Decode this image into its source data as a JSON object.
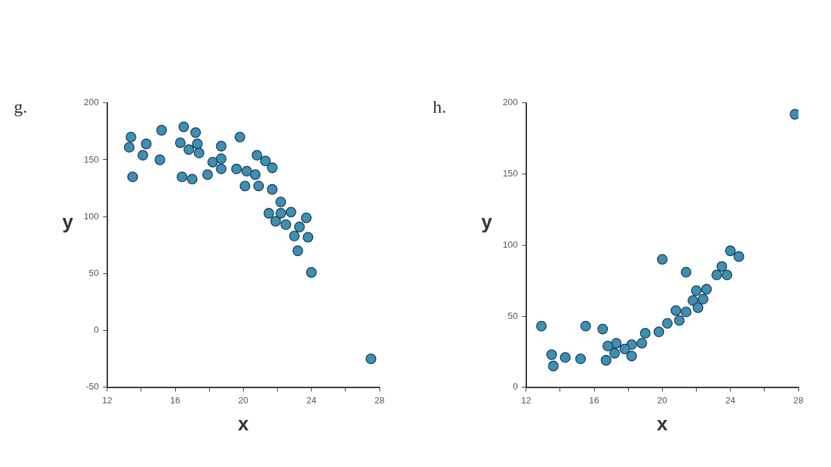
{
  "chart_data": [
    {
      "type": "scatter",
      "title": "g.",
      "xlabel": "x",
      "ylabel": "y",
      "marker": "circle",
      "grid": false,
      "xlim": [
        12,
        28
      ],
      "xticks": [
        12,
        {
          "value": 14,
          "label": null
        },
        16,
        {
          "value": 18,
          "label": null
        },
        20,
        {
          "value": 22,
          "label": null
        },
        24,
        {
          "value": 26,
          "label": null
        },
        28
      ],
      "ylim": [
        -50,
        200
      ],
      "yticks": [
        -50,
        0,
        50,
        100,
        150,
        200
      ],
      "series": [
        {
          "color": "#3d8fb3",
          "x": [
            13.3,
            13.4,
            13.5,
            14.1,
            14.3,
            15.1,
            15.2,
            16.5,
            16.3,
            16.4,
            17.0,
            17.2,
            16.8,
            17.3,
            17.4,
            17.9,
            18.2,
            18.7,
            18.7,
            18.7,
            19.8,
            19.6,
            20.2,
            20.1,
            20.7,
            20.9,
            20.8,
            21.3,
            21.7,
            21.7,
            22.2,
            21.5,
            22.2,
            21.9,
            22.5,
            22.8,
            23.7,
            23.3,
            23.0,
            23.8,
            23.2,
            24.0,
            27.5
          ],
          "values": [
            161,
            170,
            135,
            154,
            164,
            150,
            176,
            179,
            165,
            135,
            133,
            174,
            159,
            164,
            156,
            137,
            148,
            162,
            151,
            142,
            170,
            142,
            140,
            127,
            137,
            127,
            154,
            149,
            143,
            124,
            113,
            103,
            103,
            96,
            93,
            104,
            99,
            91,
            83,
            82,
            70,
            51,
            -25
          ]
        }
      ]
    },
    {
      "type": "scatter",
      "title": "h.",
      "xlabel": "x",
      "ylabel": "y",
      "marker": "circle",
      "grid": false,
      "xlim": [
        12,
        28
      ],
      "xticks": [
        12,
        {
          "value": 14,
          "label": null
        },
        16,
        {
          "value": 18,
          "label": null
        },
        20,
        {
          "value": 22,
          "label": null
        },
        24,
        {
          "value": 26,
          "label": null
        },
        28
      ],
      "ylim": [
        0,
        200
      ],
      "yticks": [
        0,
        50,
        100,
        150,
        200
      ],
      "series": [
        {
          "color": "#3d8fb3",
          "x": [
            27.8,
            20.0,
            21.4,
            24.0,
            24.5,
            23.5,
            23.2,
            23.8,
            22.6,
            22.0,
            21.8,
            22.4,
            22.1,
            21.4,
            20.8,
            21.0,
            20.3,
            19.8,
            19.0,
            18.8,
            18.2,
            18.2,
            17.8,
            17.3,
            17.2,
            16.8,
            16.7,
            16.5,
            15.5,
            15.2,
            14.3,
            13.5,
            13.6,
            12.9
          ],
          "values": [
            192,
            90,
            81,
            96,
            92,
            85,
            79,
            79,
            69,
            68,
            61,
            62,
            56,
            53,
            54,
            47,
            45,
            39,
            38,
            31,
            30,
            22,
            27,
            31,
            24,
            29,
            19,
            41,
            43,
            20,
            21,
            23,
            15,
            43
          ]
        }
      ]
    }
  ]
}
